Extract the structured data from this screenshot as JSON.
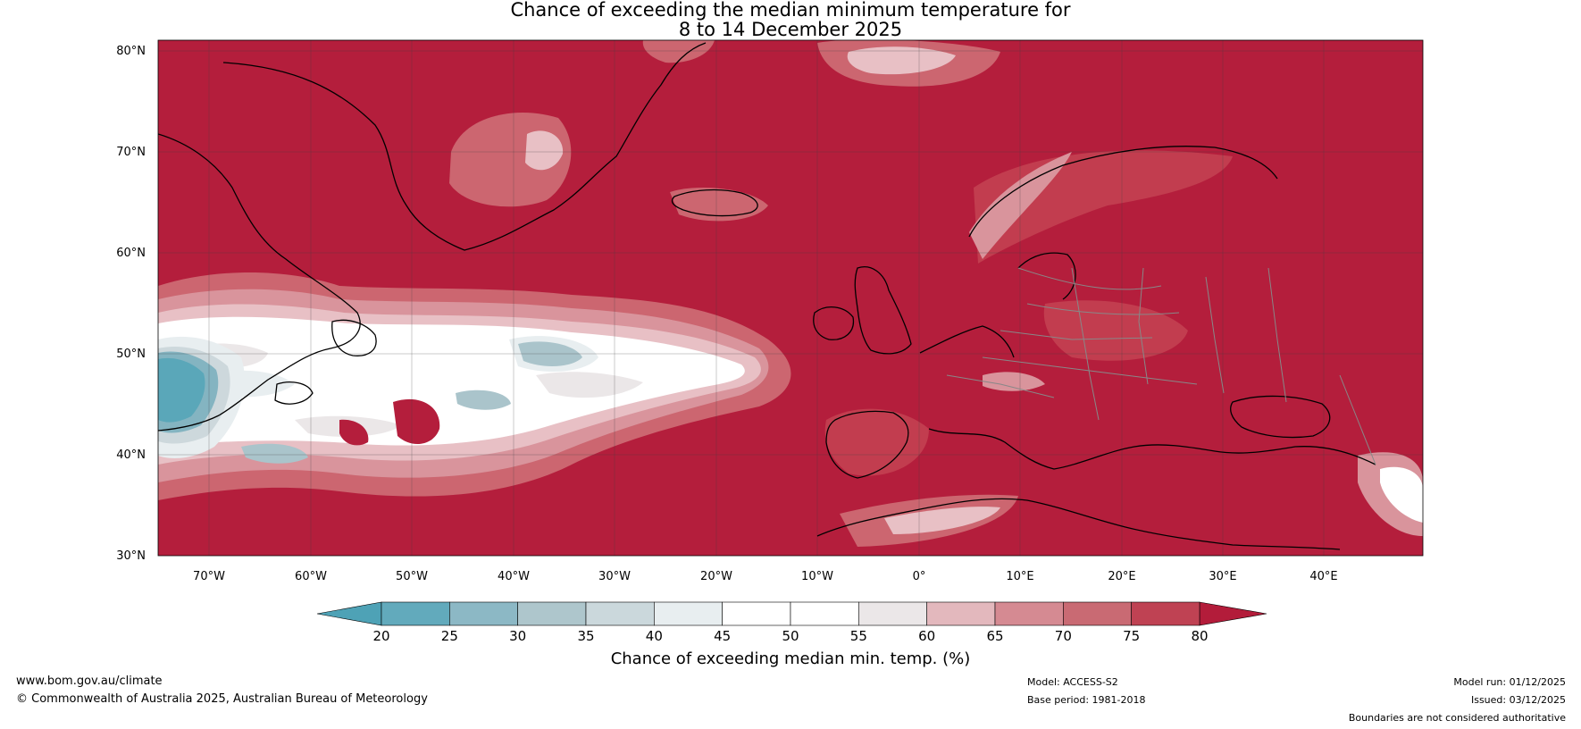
{
  "title": {
    "line1": "Chance of exceeding the median minimum temperature for",
    "line2": "8 to 14 December 2025"
  },
  "map": {
    "lat_labels": [
      "80°N",
      "70°N",
      "60°N",
      "50°N",
      "40°N",
      "30°N"
    ],
    "lon_labels": [
      "70°W",
      "60°W",
      "50°W",
      "40°W",
      "30°W",
      "20°W",
      "10°W",
      "0°",
      "10°E",
      "20°E",
      "30°E",
      "40°E"
    ],
    "colors": {
      "c80": "#b41e3c",
      "c75": "#c23d4f",
      "c70": "#cc6670",
      "c65": "#d9949c",
      "c60": "#e8c0c5",
      "c55": "#ebe7e8",
      "c50": "#ffffff",
      "c45": "#ffffff",
      "c40": "#e8eef0",
      "c35": "#cdd8dc",
      "c30": "#aac4cb",
      "c25": "#84b4c1",
      "c20": "#5aa7b9",
      "c15": "#3f9fb3",
      "coast": "#000000",
      "border": "#888888",
      "grid": "#333333"
    }
  },
  "colorbar": {
    "ticks": [
      "20",
      "25",
      "30",
      "35",
      "40",
      "45",
      "50",
      "55",
      "60",
      "65",
      "70",
      "75",
      "80"
    ],
    "colors": [
      "#62aabc",
      "#8cb8c5",
      "#aec6cc",
      "#cbd8dc",
      "#e8eef0",
      "#ffffff",
      "#ffffff",
      "#ebe7e8",
      "#e3b8bd",
      "#d58a92",
      "#c96a73",
      "#bf4253"
    ],
    "low_color": "#4ea2b6",
    "high_color": "#b31c3a",
    "label": "Chance of exceeding median min. temp. (%)"
  },
  "footer": {
    "url": "www.bom.gov.au/climate",
    "copyright": "© Commonwealth of Australia 2025, Australian Bureau of Meteorology",
    "model": "Model: ACCESS-S2",
    "base_period": "Base period: 1981-2018",
    "model_run": "Model run: 01/12/2025",
    "issued": "Issued: 03/12/2025",
    "disclaimer": "Boundaries are not considered authoritative"
  }
}
